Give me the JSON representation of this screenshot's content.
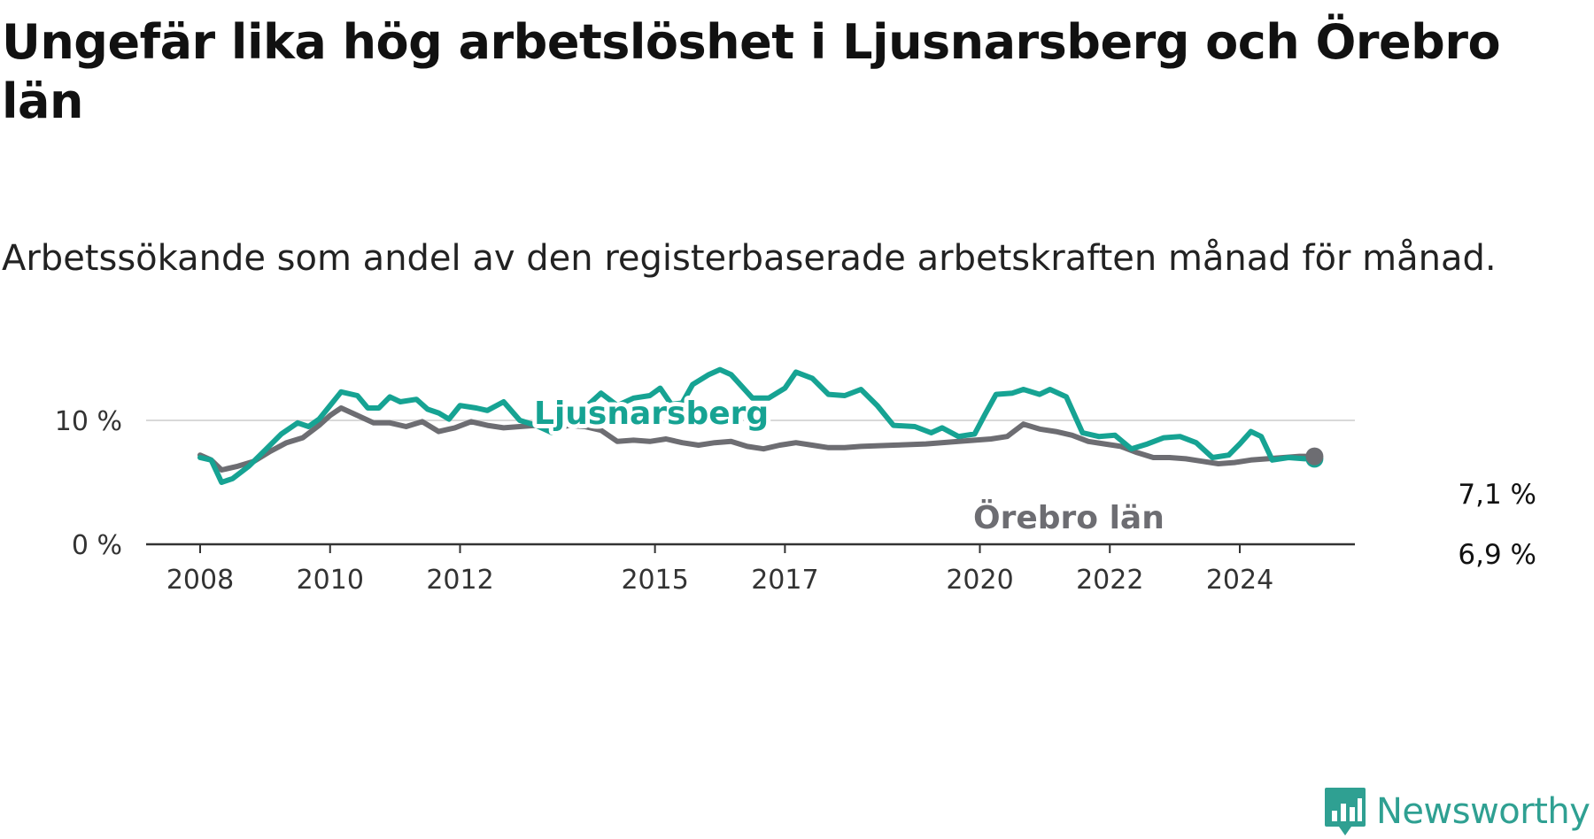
{
  "title": "Ungefär lika hög arbetslöshet i Ljusnarsberg och Örebro län",
  "subtitle": "Arbetssökande som andel av den registerbaserade arbetskraften månad för månad.",
  "brand": {
    "name": "Newsworthy",
    "color": "#2fa092",
    "icon": "bar-chart-speech-bubble-icon"
  },
  "colors": {
    "ljusnarsberg": "#16a393",
    "orebro": "#6d6d72",
    "grid": "#d9d9d9",
    "axis": "#333333"
  },
  "chart_data": {
    "type": "line",
    "title": "Ungefär lika hög arbetslöshet i Ljusnarsberg och Örebro län",
    "subtitle": "Arbetssökande som andel av den registerbaserade arbetskraften månad för månad.",
    "xlabel": "",
    "ylabel": "",
    "x_ticks": [
      "2008",
      "2010",
      "2012",
      "2015",
      "2017",
      "2020",
      "2022",
      "2024"
    ],
    "y_ticks": [
      "0 %",
      "10 %"
    ],
    "ylim": [
      0,
      15
    ],
    "xlim": [
      2007.8,
      2025.75
    ],
    "grid": "horizontal at 10 %",
    "legend": "none (direct labels)",
    "series": [
      {
        "name": "Ljusnarsberg",
        "color": "#16a393",
        "end_label": "6,9 %",
        "points": [
          [
            2008.0,
            7.0
          ],
          [
            2008.17,
            6.8
          ],
          [
            2008.33,
            5.0
          ],
          [
            2008.5,
            5.3
          ],
          [
            2008.75,
            6.3
          ],
          [
            2009.0,
            7.6
          ],
          [
            2009.25,
            8.9
          ],
          [
            2009.5,
            9.8
          ],
          [
            2009.67,
            9.5
          ],
          [
            2009.83,
            10.1
          ],
          [
            2010.0,
            11.2
          ],
          [
            2010.17,
            12.3
          ],
          [
            2010.42,
            12.0
          ],
          [
            2010.58,
            11.0
          ],
          [
            2010.75,
            11.0
          ],
          [
            2010.92,
            11.9
          ],
          [
            2011.08,
            11.5
          ],
          [
            2011.33,
            11.7
          ],
          [
            2011.5,
            10.9
          ],
          [
            2011.67,
            10.6
          ],
          [
            2011.83,
            10.1
          ],
          [
            2012.0,
            11.2
          ],
          [
            2012.25,
            11.0
          ],
          [
            2012.42,
            10.8
          ],
          [
            2012.67,
            11.5
          ],
          [
            2012.92,
            10.0
          ],
          [
            2013.17,
            9.6
          ],
          [
            2013.42,
            9.0
          ],
          [
            2013.67,
            9.9
          ],
          [
            2013.92,
            11.0
          ],
          [
            2014.17,
            12.2
          ],
          [
            2014.42,
            11.2
          ],
          [
            2014.67,
            11.8
          ],
          [
            2014.92,
            12.0
          ],
          [
            2015.08,
            12.6
          ],
          [
            2015.25,
            11.3
          ],
          [
            2015.42,
            11.4
          ],
          [
            2015.58,
            12.9
          ],
          [
            2015.83,
            13.7
          ],
          [
            2016.0,
            14.1
          ],
          [
            2016.17,
            13.7
          ],
          [
            2016.5,
            11.8
          ],
          [
            2016.75,
            11.8
          ],
          [
            2017.0,
            12.6
          ],
          [
            2017.17,
            13.9
          ],
          [
            2017.42,
            13.4
          ],
          [
            2017.67,
            12.1
          ],
          [
            2017.92,
            12.0
          ],
          [
            2018.17,
            12.5
          ],
          [
            2018.42,
            11.2
          ],
          [
            2018.67,
            9.6
          ],
          [
            2019.0,
            9.5
          ],
          [
            2019.25,
            9.0
          ],
          [
            2019.42,
            9.4
          ],
          [
            2019.67,
            8.7
          ],
          [
            2019.92,
            8.9
          ],
          [
            2020.08,
            10.5
          ],
          [
            2020.25,
            12.1
          ],
          [
            2020.5,
            12.2
          ],
          [
            2020.67,
            12.5
          ],
          [
            2020.92,
            12.1
          ],
          [
            2021.08,
            12.5
          ],
          [
            2021.33,
            11.9
          ],
          [
            2021.58,
            9.0
          ],
          [
            2021.83,
            8.7
          ],
          [
            2022.08,
            8.8
          ],
          [
            2022.33,
            7.7
          ],
          [
            2022.58,
            8.1
          ],
          [
            2022.83,
            8.6
          ],
          [
            2023.08,
            8.7
          ],
          [
            2023.33,
            8.2
          ],
          [
            2023.58,
            7.0
          ],
          [
            2023.83,
            7.2
          ],
          [
            2024.0,
            8.1
          ],
          [
            2024.17,
            9.1
          ],
          [
            2024.33,
            8.7
          ],
          [
            2024.5,
            6.8
          ],
          [
            2024.75,
            7.0
          ],
          [
            2025.0,
            6.9
          ],
          [
            2025.15,
            6.9
          ]
        ]
      },
      {
        "name": "Örebro län",
        "color": "#6d6d72",
        "end_label": "7,1 %",
        "points": [
          [
            2008.0,
            7.2
          ],
          [
            2008.17,
            6.8
          ],
          [
            2008.33,
            6.0
          ],
          [
            2008.58,
            6.3
          ],
          [
            2008.83,
            6.7
          ],
          [
            2009.08,
            7.5
          ],
          [
            2009.33,
            8.2
          ],
          [
            2009.58,
            8.6
          ],
          [
            2009.83,
            9.6
          ],
          [
            2010.0,
            10.4
          ],
          [
            2010.17,
            11.0
          ],
          [
            2010.42,
            10.4
          ],
          [
            2010.67,
            9.8
          ],
          [
            2010.92,
            9.8
          ],
          [
            2011.17,
            9.5
          ],
          [
            2011.42,
            9.9
          ],
          [
            2011.67,
            9.1
          ],
          [
            2011.92,
            9.4
          ],
          [
            2012.17,
            9.9
          ],
          [
            2012.42,
            9.6
          ],
          [
            2012.67,
            9.4
          ],
          [
            2012.92,
            9.5
          ],
          [
            2013.17,
            9.6
          ],
          [
            2013.42,
            9.2
          ],
          [
            2013.67,
            9.6
          ],
          [
            2013.92,
            9.5
          ],
          [
            2014.17,
            9.2
          ],
          [
            2014.42,
            8.3
          ],
          [
            2014.67,
            8.4
          ],
          [
            2014.92,
            8.3
          ],
          [
            2015.17,
            8.5
          ],
          [
            2015.42,
            8.2
          ],
          [
            2015.67,
            8.0
          ],
          [
            2015.92,
            8.2
          ],
          [
            2016.17,
            8.3
          ],
          [
            2016.42,
            7.9
          ],
          [
            2016.67,
            7.7
          ],
          [
            2016.92,
            8.0
          ],
          [
            2017.17,
            8.2
          ],
          [
            2017.42,
            8.0
          ],
          [
            2017.67,
            7.8
          ],
          [
            2017.92,
            7.8
          ],
          [
            2018.17,
            7.9
          ],
          [
            2018.67,
            8.0
          ],
          [
            2019.17,
            8.1
          ],
          [
            2019.67,
            8.3
          ],
          [
            2020.17,
            8.5
          ],
          [
            2020.42,
            8.7
          ],
          [
            2020.67,
            9.7
          ],
          [
            2020.92,
            9.3
          ],
          [
            2021.17,
            9.1
          ],
          [
            2021.42,
            8.8
          ],
          [
            2021.67,
            8.3
          ],
          [
            2021.92,
            8.1
          ],
          [
            2022.17,
            7.9
          ],
          [
            2022.42,
            7.4
          ],
          [
            2022.67,
            7.0
          ],
          [
            2022.92,
            7.0
          ],
          [
            2023.17,
            6.9
          ],
          [
            2023.42,
            6.7
          ],
          [
            2023.67,
            6.5
          ],
          [
            2023.92,
            6.6
          ],
          [
            2024.17,
            6.8
          ],
          [
            2024.42,
            6.9
          ],
          [
            2024.67,
            7.0
          ],
          [
            2024.92,
            7.1
          ],
          [
            2025.15,
            7.1
          ]
        ]
      }
    ]
  }
}
